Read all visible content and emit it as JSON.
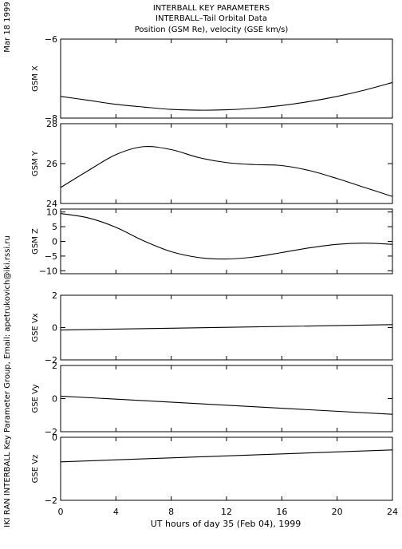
{
  "header": {
    "title_line1": "INTERBALL KEY PARAMETERS",
    "title_line2": "INTERBALL–Tail Orbital Data",
    "title_line3": "Position (GSM Re), velocity (GSE km/s)"
  },
  "side": {
    "date": "Mar 18 1999",
    "credit": "IKI RAN INTERBALL Key Parameter Group, Email: apetrukovich@iki.rssi.ru"
  },
  "footer": {
    "xlabel": "UT hours of day  35 (Feb 04), 1999"
  },
  "chart_data": [
    {
      "type": "line",
      "ylabel": "GSM X",
      "ylim": [
        -8,
        -6
      ],
      "ytick_values": [
        -8,
        -6
      ],
      "ytick_labels": [
        "−8",
        "−6"
      ],
      "x": [
        0,
        2,
        4,
        6,
        8,
        10,
        12,
        14,
        16,
        18,
        20,
        22,
        24
      ],
      "values": [
        -7.45,
        -7.55,
        -7.65,
        -7.72,
        -7.78,
        -7.8,
        -7.79,
        -7.75,
        -7.68,
        -7.58,
        -7.45,
        -7.29,
        -7.1
      ]
    },
    {
      "type": "line",
      "ylabel": "GSM Y",
      "ylim": [
        24,
        28
      ],
      "ytick_values": [
        24,
        26,
        28
      ],
      "ytick_labels": [
        "24",
        "26",
        "28"
      ],
      "x": [
        0,
        2,
        4,
        6,
        8,
        10,
        12,
        14,
        16,
        18,
        20,
        22,
        24
      ],
      "values": [
        24.8,
        25.65,
        26.45,
        26.85,
        26.7,
        26.3,
        26.05,
        25.95,
        25.9,
        25.65,
        25.25,
        24.8,
        24.35
      ]
    },
    {
      "type": "line",
      "ylabel": "GSM Z",
      "ylim": [
        -11,
        11
      ],
      "ytick_values": [
        -10,
        -5,
        0,
        5,
        10
      ],
      "ytick_labels": [
        "−10",
        "−5",
        "0",
        "5",
        "10"
      ],
      "x": [
        0,
        2,
        4,
        6,
        8,
        10,
        12,
        14,
        16,
        18,
        20,
        22,
        24
      ],
      "values": [
        9.5,
        8.0,
        4.8,
        0.2,
        -3.5,
        -5.5,
        -6.0,
        -5.3,
        -3.8,
        -2.2,
        -1.0,
        -0.6,
        -1.0
      ]
    },
    {
      "type": "line",
      "ylabel": "GSE Vx",
      "ylim": [
        -2,
        2
      ],
      "ytick_values": [
        -2,
        0,
        2
      ],
      "ytick_labels": [
        "−2",
        "0",
        "2"
      ],
      "x": [
        0,
        24
      ],
      "values": [
        -0.15,
        0.18
      ]
    },
    {
      "type": "line",
      "ylabel": "GSE Vy",
      "ylim": [
        -2,
        2
      ],
      "ytick_values": [
        -2,
        0,
        2
      ],
      "ytick_labels": [
        "−2",
        "0",
        "2"
      ],
      "x": [
        0,
        24
      ],
      "values": [
        0.15,
        -0.95
      ]
    },
    {
      "type": "line",
      "ylabel": "GSE Vz",
      "ylim": [
        -2,
        0
      ],
      "ytick_values": [
        -2,
        0
      ],
      "ytick_labels": [
        "−2",
        "0"
      ],
      "x": [
        0,
        24
      ],
      "values": [
        -0.78,
        -0.4
      ]
    }
  ],
  "x_axis": {
    "xlim": [
      0,
      24
    ],
    "ticks": [
      "0",
      "4",
      "8",
      "12",
      "16",
      "20",
      "24"
    ]
  }
}
